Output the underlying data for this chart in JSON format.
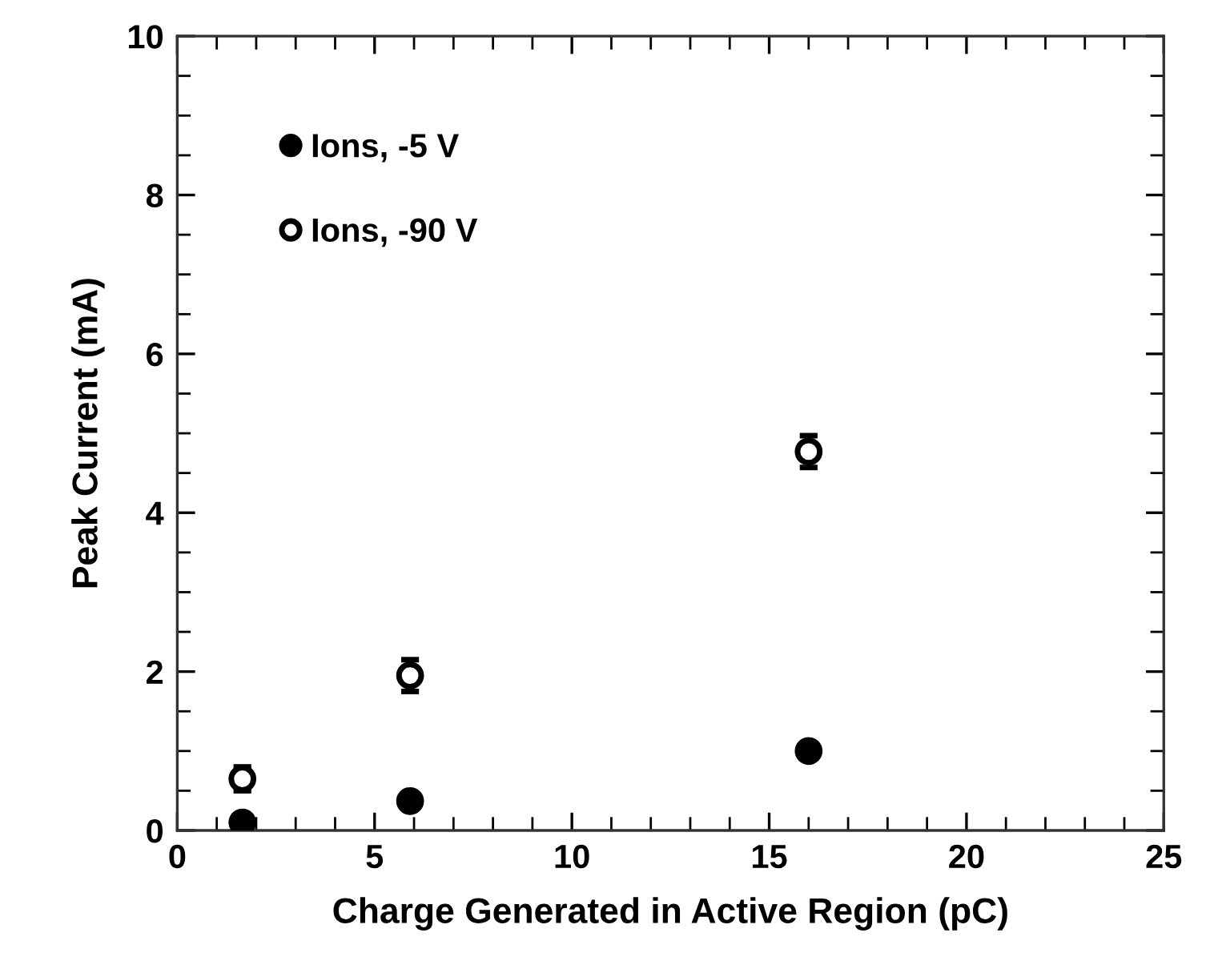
{
  "chart_data": {
    "type": "scatter",
    "xlabel": "Charge Generated in Active Region (pC)",
    "ylabel": "Peak Current (mA)",
    "xlim": [
      0,
      25
    ],
    "xticks": [
      0,
      5,
      10,
      15,
      20,
      25
    ],
    "ylim": [
      0,
      10
    ],
    "yticks": [
      0,
      2,
      4,
      6,
      8,
      10
    ],
    "grid": false,
    "legend": "top left",
    "marker": "circle",
    "series": [
      {
        "name": "Ions, -5 V",
        "color": "#000000",
        "x": [
          1.65,
          5.9,
          16.0
        ],
        "values": [
          0.1,
          0.37,
          1.0
        ]
      },
      {
        "name": "Ions, -90 V",
        "color": "#ffffff",
        "x": [
          1.65,
          5.9,
          16.0
        ],
        "values": [
          0.65,
          1.95,
          4.77
        ],
        "errors": [
          0.15,
          0.2,
          0.2
        ]
      }
    ]
  }
}
